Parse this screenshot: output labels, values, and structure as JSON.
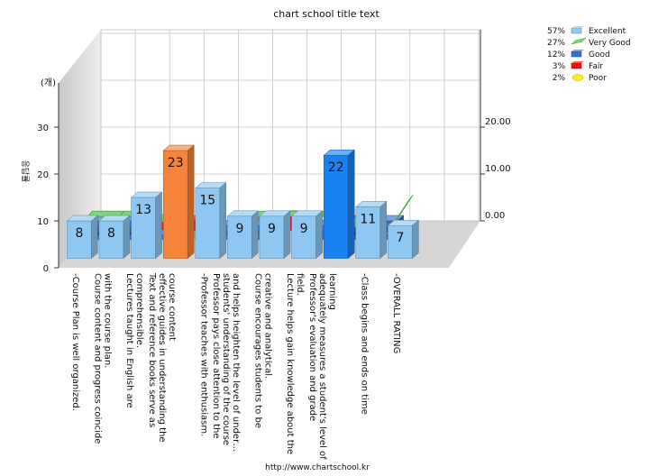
{
  "chart_data": {
    "type": "bar",
    "title": "chart school title text",
    "footer": "http://www.chartschool.kr",
    "ylabel": "응답률",
    "y_unit": "(개)",
    "left_axis_ticks": [
      0,
      10,
      20,
      30
    ],
    "right_axis_ticks": [
      "0.00",
      "10.00",
      "20.00"
    ],
    "categories": [
      "-Course Plan is well organized.",
      "Course content and progress coincide with the course plan.",
      "Lectures taught in English are comprehensible.",
      "Text and reference books serve as effective guides in understanding the course content",
      "-Professor teaches with enthusiasm.",
      "Professor pays close attention to the students' understanding of the course and helps heighten the  level of under…",
      "Course encourages students to be creative and analytical.",
      "Lecture helps gain knowledge about the field.",
      "Professor's evaluation and grade adequately measures a student's level of learning",
      "-Class begins and ends on time",
      "-OVERALL RATING"
    ],
    "series": [
      {
        "name": "Excellent",
        "color": "#8ec8f2",
        "values": [
          8,
          8,
          13,
          23,
          15,
          9,
          9,
          9,
          22,
          11,
          7
        ]
      },
      {
        "name": "Very Good",
        "color": "#66cc66",
        "values": [
          2,
          2,
          2,
          1,
          0,
          2,
          2,
          2,
          2,
          0,
          3
        ]
      },
      {
        "name": "Good",
        "color": "#3a6fd0",
        "values": [
          4,
          4,
          1,
          0,
          3,
          3,
          0,
          3,
          4,
          4,
          0
        ]
      },
      {
        "name": "Fair",
        "color": "#ee1111",
        "values": [
          0,
          0,
          2,
          2,
          0,
          2,
          3,
          0,
          0,
          0,
          0
        ]
      },
      {
        "name": "Poor",
        "color": "#f5ee2a",
        "values": [
          0,
          0,
          1,
          0,
          1,
          0,
          0,
          1,
          0,
          0,
          0
        ]
      }
    ],
    "highlighted_excellent_bars": {
      "3": "#f5843a",
      "8": "#1a82f0"
    },
    "legend": [
      {
        "pct": "57%",
        "name": "Excellent"
      },
      {
        "pct": "27%",
        "name": "Very Good"
      },
      {
        "pct": "12%",
        "name": "Good"
      },
      {
        "pct": "3%",
        "name": "Fair"
      },
      {
        "pct": "2%",
        "name": "Poor"
      }
    ],
    "legend_position": "top-right"
  }
}
